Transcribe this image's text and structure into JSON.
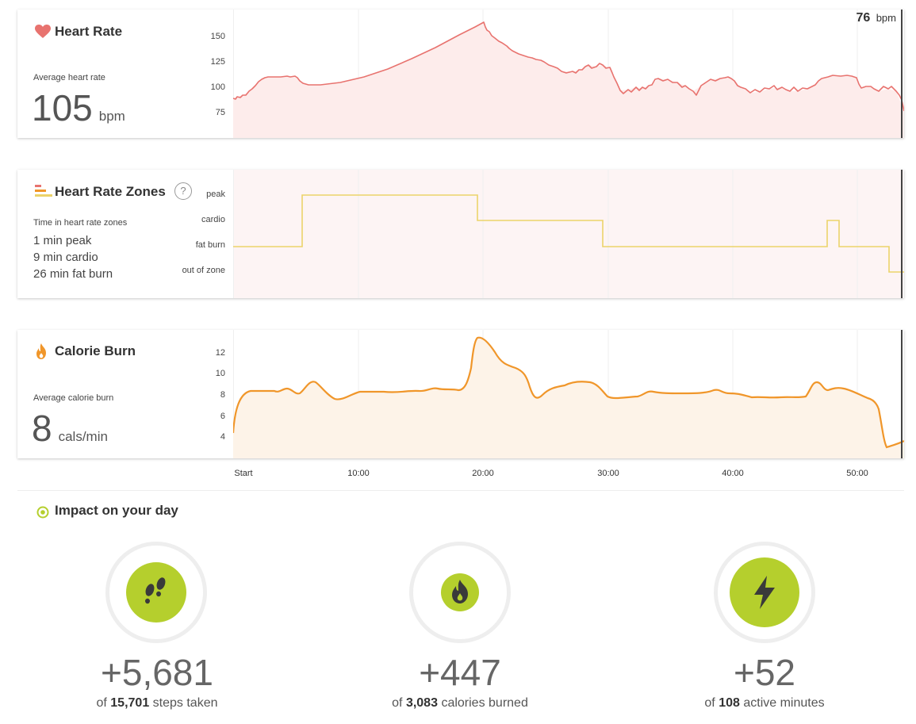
{
  "heart_rate": {
    "title": "Heart Rate",
    "avg_label": "Average heart rate",
    "avg_value": "105",
    "avg_unit": "bpm",
    "current_value": "76",
    "current_unit": "bpm",
    "yticks": [
      "150",
      "125",
      "100",
      "75"
    ],
    "color": "#e8736f",
    "fill": "#fdeceb"
  },
  "zones": {
    "title": "Heart Rate Zones",
    "help": "?",
    "label": "Time in heart rate zones",
    "lines": [
      "1 min peak",
      "9 min cardio",
      "26 min fat burn"
    ],
    "levels": [
      "peak",
      "cardio",
      "fat burn",
      "out of zone"
    ],
    "color": "#ecd36a",
    "fill": "#fdeff0"
  },
  "calories": {
    "title": "Calorie Burn",
    "avg_label": "Average calorie burn",
    "avg_value": "8",
    "avg_unit": "cals/min",
    "yticks": [
      "12",
      "10",
      "8",
      "6",
      "4"
    ],
    "color": "#f0962a",
    "fill": "#fdf3e8"
  },
  "xaxis": [
    "Start",
    "10:00",
    "20:00",
    "30:00",
    "40:00",
    "50:00"
  ],
  "impact": {
    "title": "Impact on your day",
    "stats": [
      {
        "icon": "footsteps-icon",
        "value": "+5,681",
        "of": "of",
        "total": "15,701",
        "suffix": "steps taken"
      },
      {
        "icon": "flame-icon",
        "value": "+447",
        "of": "of",
        "total": "3,083",
        "suffix": "calories burned"
      },
      {
        "icon": "bolt-icon",
        "value": "+52",
        "of": "of",
        "total": "108",
        "suffix": "active minutes"
      }
    ],
    "accent": "#b5cf2d"
  }
}
